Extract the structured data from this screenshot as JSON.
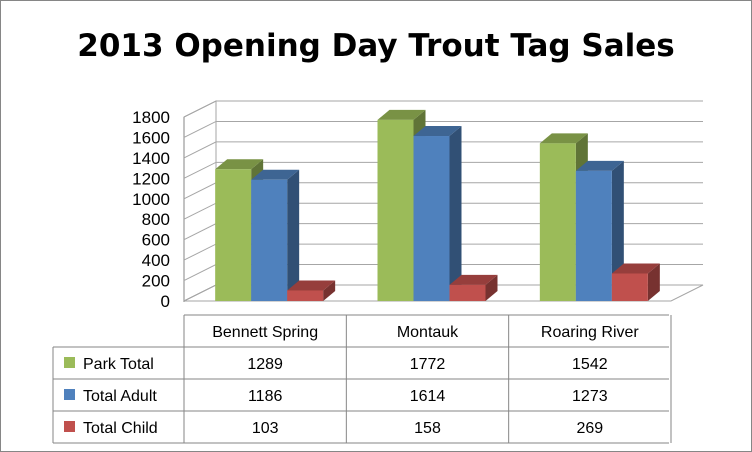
{
  "chart_data": {
    "type": "bar",
    "title": "2013 Opening Day Trout Tag Sales",
    "categories": [
      "Bennett Spring",
      "Montauk",
      "Roaring River"
    ],
    "series": [
      {
        "name": "Park Total",
        "values": [
          1289,
          1772,
          1542
        ],
        "color": "#9BBB59"
      },
      {
        "name": "Total Adult",
        "values": [
          1186,
          1614,
          1273
        ],
        "color": "#4F81BD"
      },
      {
        "name": "Total Child",
        "values": [
          103,
          158,
          269
        ],
        "color": "#C0504D"
      }
    ],
    "ylim": [
      0,
      1800
    ],
    "yticks": [
      "0",
      "200",
      "400",
      "600",
      "800",
      "1000",
      "1200",
      "1400",
      "1600",
      "1800"
    ],
    "grid": true,
    "three_d": true,
    "data_table": true
  }
}
